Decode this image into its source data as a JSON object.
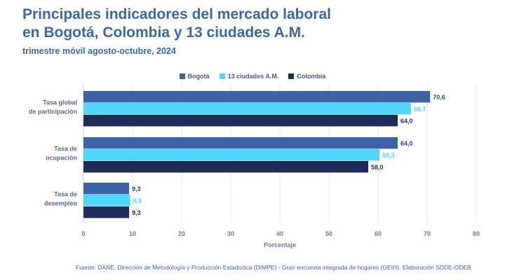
{
  "header": {
    "title_line1": "Principales indicadores del mercado laboral",
    "title_line2": "en Bogotá, Colombia y 13 ciudades A.M.",
    "subtitle": "trimestre móvil agosto-octubre, 2024"
  },
  "colors": {
    "bogota": "#3c63a8",
    "ciudades": "#4fd6ff",
    "colombia": "#1e2c59",
    "label_bogota": "#2b4a86",
    "label_ciudades": "#4fd6ff",
    "label_colombia": "#1e2c59",
    "axis_text": "#6a7a95",
    "category_text": "#5a6a85"
  },
  "chart_data": {
    "type": "bar",
    "orientation": "horizontal",
    "categories": [
      [
        "Tasa global",
        "de participación"
      ],
      [
        "Tasa de",
        "ocupación"
      ],
      [
        "Tasa de",
        "desempleo"
      ]
    ],
    "series": [
      {
        "name": "Bogotá",
        "values": [
          70.6,
          64.0,
          9.3
        ],
        "labels": [
          "70,6",
          "64,0",
          "9,3"
        ]
      },
      {
        "name": "13 ciudades A.M.",
        "values": [
          66.7,
          60.3,
          9.5
        ],
        "labels": [
          "66,7",
          "60,3",
          "9,5"
        ]
      },
      {
        "name": "Colombia",
        "values": [
          64.0,
          58.0,
          9.3
        ],
        "labels": [
          "64,0",
          "58,0",
          "9,3"
        ]
      }
    ],
    "xlabel": "Porcentaje",
    "xlim": [
      0,
      80
    ],
    "xticks": [
      0,
      10,
      20,
      30,
      40,
      50,
      60,
      70,
      80
    ],
    "legend_position": "top-center",
    "grid": "vertical"
  },
  "footnote": "Fuente: DANE, Dirección de Metodología y Producción Estadística (DIMPE) - Gran encuesta integrada de hogares (GEIH). Elaboración SDDE-ODEB."
}
